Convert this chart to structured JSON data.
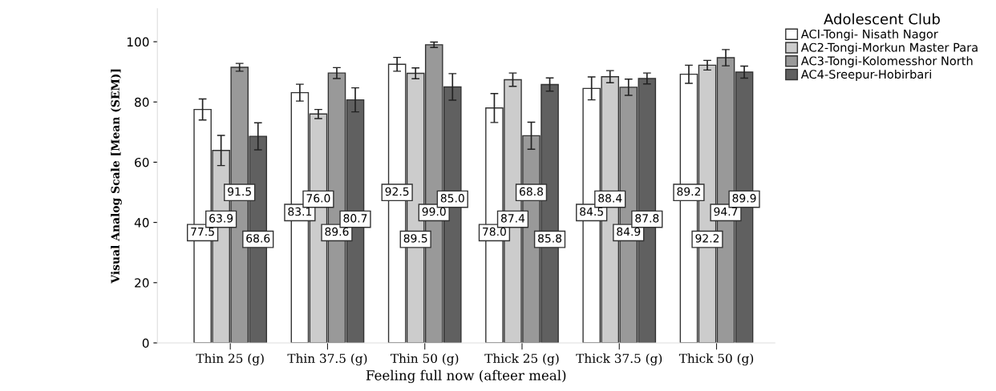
{
  "chart_data": {
    "type": "bar",
    "xlabel": "Feeling full now (afteer meal)",
    "ylabel": "Visual Analog Scale [Mean (SEM)]",
    "legend_title": "Adolescent Club",
    "categories": [
      "Thin 25 (g)",
      "Thin 37.5 (g)",
      "Thin 50 (g)",
      "Thick 25 (g)",
      "Thick 37.5 (g)",
      "Thick 50 (g)"
    ],
    "series": [
      {
        "name": "ACI-Tongi- Nisath Nagor",
        "color": "#ffffff",
        "values": [
          77.5,
          83.1,
          92.5,
          78.0,
          84.5,
          89.2
        ],
        "value_labels": [
          "77.5",
          "83.1",
          "92.5",
          "78.0",
          "84.5",
          "89.2"
        ],
        "errors": [
          3.5,
          2.8,
          2.3,
          4.8,
          3.8,
          3.0
        ]
      },
      {
        "name": "AC2-Tongi-Morkun Master Para",
        "color": "#cccccc",
        "values": [
          63.9,
          76.0,
          89.5,
          87.4,
          88.4,
          92.2
        ],
        "value_labels": [
          "63.9",
          "76.0",
          "89.5",
          "87.4",
          "88.4",
          "92.2"
        ],
        "errors": [
          5.0,
          1.5,
          1.8,
          2.2,
          2.0,
          1.6
        ]
      },
      {
        "name": "AC3-Tongi-Kolomesshor North",
        "color": "#999999",
        "values": [
          91.5,
          89.6,
          99.0,
          68.8,
          84.9,
          94.7
        ],
        "value_labels": [
          "91.5",
          "89.6",
          "99.0",
          "68.8",
          "84.9",
          "94.7"
        ],
        "errors": [
          1.3,
          1.8,
          0.9,
          4.5,
          2.7,
          2.7
        ]
      },
      {
        "name": "AC4-Sreepur-Hobirbari",
        "color": "#606060",
        "values": [
          68.6,
          80.7,
          85.0,
          85.8,
          87.8,
          89.9
        ],
        "value_labels": [
          "68.6",
          "80.7",
          "85.0",
          "85.8",
          "87.8",
          "89.9"
        ],
        "errors": [
          4.5,
          4.0,
          4.4,
          2.2,
          1.8,
          2.0
        ]
      }
    ],
    "ylim": [
      0,
      111
    ],
    "yticks": [
      0,
      20,
      40,
      60,
      80,
      100
    ],
    "grid": false,
    "legend": "top right"
  }
}
